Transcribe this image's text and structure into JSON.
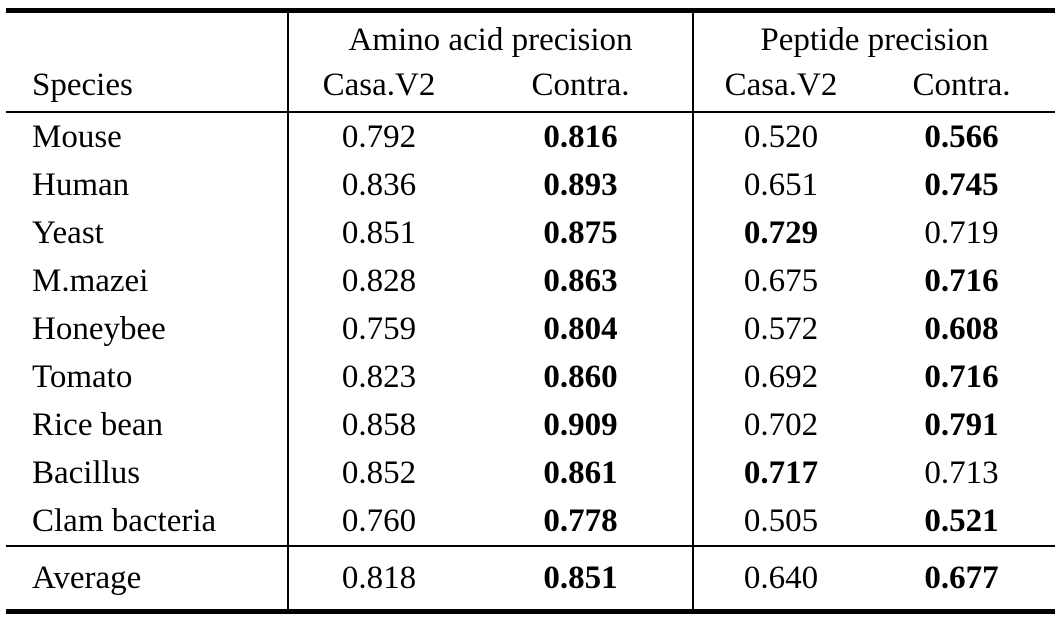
{
  "table": {
    "species_header": "Species",
    "group_headers": {
      "amino": "Amino acid precision",
      "peptide": "Peptide precision"
    },
    "sub_headers": {
      "amino_casa": "Casa.V2",
      "amino_contra": "Contra.",
      "peptide_casa": "Casa.V2",
      "peptide_contra": "Contra."
    },
    "rows": [
      {
        "species": "Mouse",
        "values": [
          "0.792",
          "0.816",
          "0.520",
          "0.566"
        ],
        "bold": [
          false,
          true,
          false,
          true
        ]
      },
      {
        "species": "Human",
        "values": [
          "0.836",
          "0.893",
          "0.651",
          "0.745"
        ],
        "bold": [
          false,
          true,
          false,
          true
        ]
      },
      {
        "species": "Yeast",
        "values": [
          "0.851",
          "0.875",
          "0.729",
          "0.719"
        ],
        "bold": [
          false,
          true,
          true,
          false
        ]
      },
      {
        "species": "M.mazei",
        "values": [
          "0.828",
          "0.863",
          "0.675",
          "0.716"
        ],
        "bold": [
          false,
          true,
          false,
          true
        ]
      },
      {
        "species": "Honeybee",
        "values": [
          "0.759",
          "0.804",
          "0.572",
          "0.608"
        ],
        "bold": [
          false,
          true,
          false,
          true
        ]
      },
      {
        "species": "Tomato",
        "values": [
          "0.823",
          "0.860",
          "0.692",
          "0.716"
        ],
        "bold": [
          false,
          true,
          false,
          true
        ]
      },
      {
        "species": "Rice bean",
        "values": [
          "0.858",
          "0.909",
          "0.702",
          "0.791"
        ],
        "bold": [
          false,
          true,
          false,
          true
        ]
      },
      {
        "species": "Bacillus",
        "values": [
          "0.852",
          "0.861",
          "0.717",
          "0.713"
        ],
        "bold": [
          false,
          true,
          true,
          false
        ]
      },
      {
        "species": "Clam bacteria",
        "values": [
          "0.760",
          "0.778",
          "0.505",
          "0.521"
        ],
        "bold": [
          false,
          true,
          false,
          true
        ]
      }
    ],
    "average": {
      "species": "Average",
      "values": [
        "0.818",
        "0.851",
        "0.640",
        "0.677"
      ],
      "bold": [
        false,
        true,
        false,
        true
      ]
    },
    "colors": {
      "text": "#000000",
      "background": "#ffffff",
      "rule": "#000000"
    }
  }
}
